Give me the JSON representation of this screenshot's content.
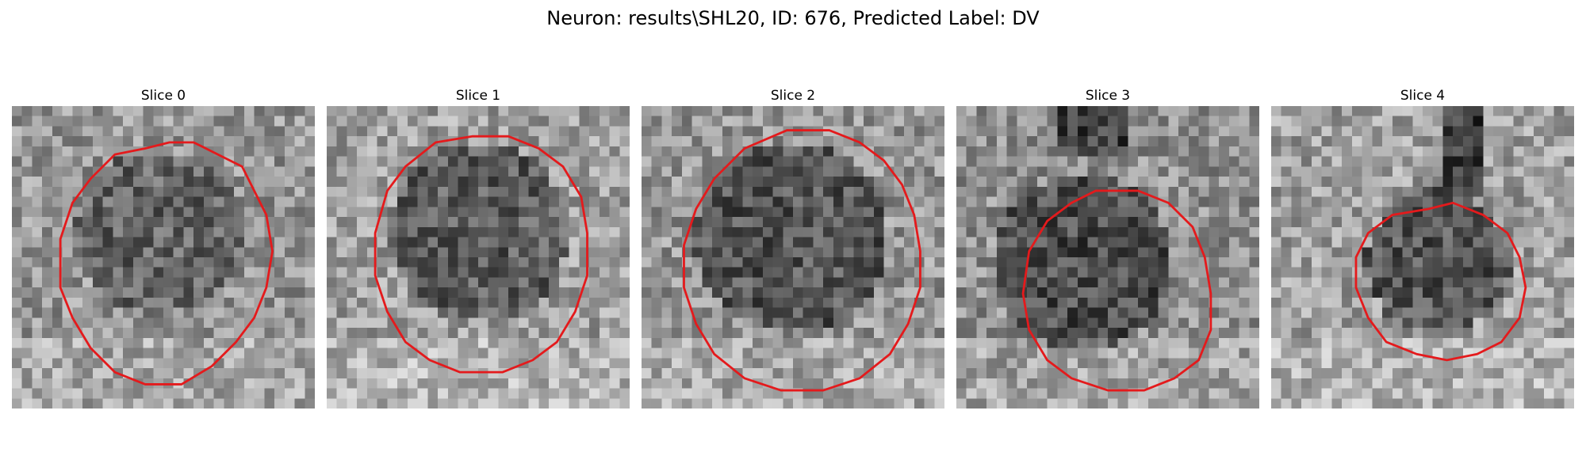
{
  "figure": {
    "title": "Neuron: results\\SHL20, ID: 676, Predicted Label: DV"
  },
  "panels": [
    {
      "title": "Slice 0",
      "contour_color": "#e41a1c",
      "contour": [
        [
          22,
          7
        ],
        [
          26,
          6
        ],
        [
          30,
          6
        ],
        [
          34,
          8
        ],
        [
          38,
          10
        ],
        [
          40,
          14
        ],
        [
          42,
          18
        ],
        [
          43,
          24
        ],
        [
          42,
          30
        ],
        [
          40,
          35
        ],
        [
          37,
          39
        ],
        [
          33,
          43
        ],
        [
          28,
          46
        ],
        [
          22,
          46
        ],
        [
          17,
          44
        ],
        [
          13,
          40
        ],
        [
          10,
          35
        ],
        [
          8,
          30
        ],
        [
          8,
          22
        ],
        [
          10,
          16
        ],
        [
          13,
          12
        ],
        [
          17,
          8
        ]
      ]
    },
    {
      "title": "Slice 1",
      "contour_color": "#e41a1c",
      "contour": [
        [
          24,
          5
        ],
        [
          30,
          5
        ],
        [
          35,
          7
        ],
        [
          39,
          10
        ],
        [
          42,
          15
        ],
        [
          43,
          21
        ],
        [
          43,
          28
        ],
        [
          41,
          34
        ],
        [
          38,
          39
        ],
        [
          34,
          42
        ],
        [
          29,
          44
        ],
        [
          22,
          44
        ],
        [
          17,
          42
        ],
        [
          13,
          39
        ],
        [
          10,
          34
        ],
        [
          8,
          28
        ],
        [
          8,
          21
        ],
        [
          10,
          14
        ],
        [
          13,
          10
        ],
        [
          18,
          6
        ]
      ]
    },
    {
      "title": "Slice 2",
      "contour_color": "#e41a1c",
      "contour": [
        [
          24,
          4
        ],
        [
          31,
          4
        ],
        [
          36,
          6
        ],
        [
          40,
          9
        ],
        [
          43,
          13
        ],
        [
          45,
          18
        ],
        [
          46,
          24
        ],
        [
          46,
          30
        ],
        [
          44,
          36
        ],
        [
          41,
          41
        ],
        [
          36,
          45
        ],
        [
          30,
          47
        ],
        [
          23,
          47
        ],
        [
          17,
          45
        ],
        [
          12,
          41
        ],
        [
          9,
          36
        ],
        [
          7,
          30
        ],
        [
          7,
          23
        ],
        [
          9,
          17
        ],
        [
          12,
          12
        ],
        [
          17,
          7
        ]
      ]
    },
    {
      "title": "Slice 3",
      "contour_color": "#e41a1c",
      "contour": [
        [
          23,
          14
        ],
        [
          30,
          14
        ],
        [
          35,
          16
        ],
        [
          39,
          20
        ],
        [
          41,
          25
        ],
        [
          42,
          31
        ],
        [
          42,
          37
        ],
        [
          40,
          42
        ],
        [
          36,
          45
        ],
        [
          31,
          47
        ],
        [
          25,
          47
        ],
        [
          19,
          45
        ],
        [
          15,
          42
        ],
        [
          12,
          37
        ],
        [
          11,
          31
        ],
        [
          12,
          24
        ],
        [
          15,
          19
        ],
        [
          19,
          16
        ]
      ]
    },
    {
      "title": "Slice 4",
      "contour_color": "#e41a1c",
      "contour": [
        [
          26,
          17
        ],
        [
          30,
          16
        ],
        [
          35,
          18
        ],
        [
          39,
          21
        ],
        [
          41,
          25
        ],
        [
          42,
          30
        ],
        [
          41,
          35
        ],
        [
          38,
          39
        ],
        [
          34,
          41
        ],
        [
          29,
          42
        ],
        [
          24,
          41
        ],
        [
          19,
          39
        ],
        [
          16,
          35
        ],
        [
          14,
          30
        ],
        [
          14,
          25
        ],
        [
          16,
          21
        ],
        [
          20,
          18
        ]
      ]
    }
  ]
}
